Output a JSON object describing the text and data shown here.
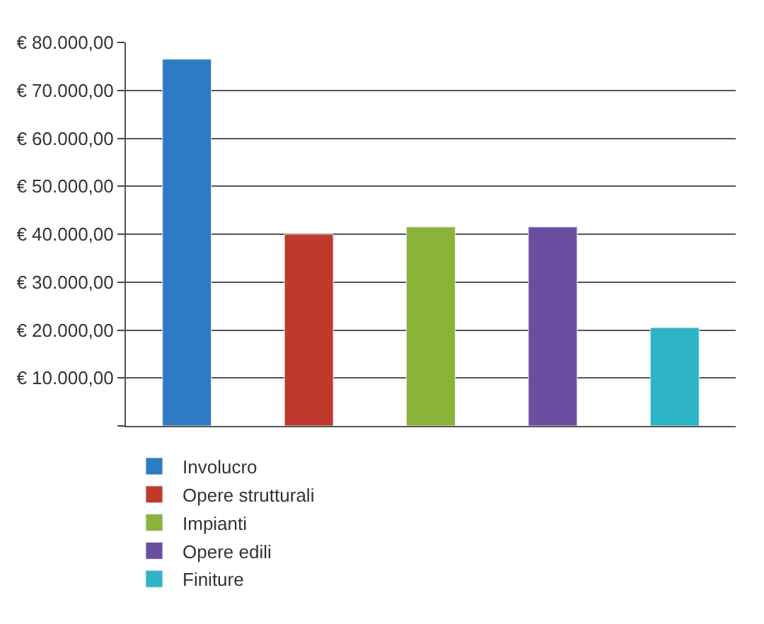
{
  "chart_data": {
    "type": "bar",
    "categories": [
      null,
      null,
      null,
      null,
      null
    ],
    "series": [
      {
        "name": "Involucro",
        "color": "#2e7bc4",
        "values": [
          76500,
          null,
          null,
          null,
          null
        ]
      },
      {
        "name": "Opere strutturali",
        "color": "#c0392f",
        "values": [
          null,
          40000,
          null,
          null,
          null
        ]
      },
      {
        "name": "Impianti",
        "color": "#8bb33a",
        "values": [
          null,
          null,
          41500,
          null,
          null
        ]
      },
      {
        "name": "Opere edili",
        "color": "#6b4ea0",
        "values": [
          null,
          null,
          null,
          41500,
          null
        ]
      },
      {
        "name": "Finiture",
        "color": "#2fb3c6",
        "values": [
          null,
          null,
          null,
          null,
          20500
        ]
      }
    ],
    "ylim": [
      0,
      80000
    ],
    "yticks": [
      {
        "value": 0,
        "label": null
      },
      {
        "value": 10000,
        "label": "€ 10.000,00"
      },
      {
        "value": 20000,
        "label": "€ 20.000,00"
      },
      {
        "value": 30000,
        "label": "€ 30.000,00"
      },
      {
        "value": 40000,
        "label": "€ 40.000,00"
      },
      {
        "value": 50000,
        "label": "€ 50.000,00"
      },
      {
        "value": 60000,
        "label": "€ 60.000,00"
      },
      {
        "value": 70000,
        "label": "€ 70.000,00"
      },
      {
        "value": 80000,
        "label": "€ 80.000,00"
      }
    ],
    "grid": "y",
    "legend": "bottom left",
    "tick_labels": "y"
  }
}
